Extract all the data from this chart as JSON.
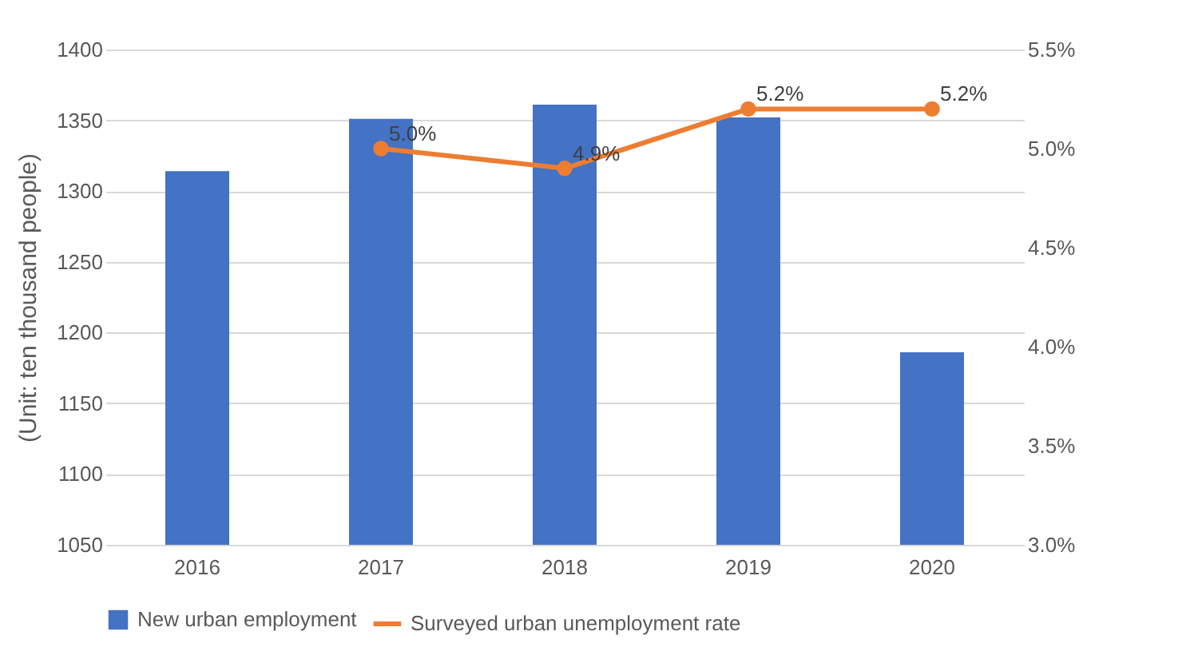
{
  "chart_data": {
    "type": "bar",
    "categories": [
      "2016",
      "2017",
      "2018",
      "2019",
      "2020"
    ],
    "ylabel": "(Unit: ten thousand people)",
    "ylim": [
      1050,
      1400
    ],
    "yticks": [
      1050,
      1100,
      1150,
      1200,
      1250,
      1300,
      1350,
      1400
    ],
    "y2lim": [
      3.0,
      5.5
    ],
    "y2ticks": [
      {
        "value": 3.0,
        "label": "3.0%"
      },
      {
        "value": 3.5,
        "label": "3.5%"
      },
      {
        "value": 4.0,
        "label": "4.0%"
      },
      {
        "value": 4.5,
        "label": "4.5%"
      },
      {
        "value": 5.0,
        "label": "5.0%"
      },
      {
        "value": 5.5,
        "label": "5.5%"
      }
    ],
    "grid": "y",
    "legend": "bottom",
    "marker": "circle",
    "series": [
      {
        "name": "New urban employment",
        "color": "#4472c4",
        "values": [
          1314,
          1351,
          1361,
          1352,
          1186
        ]
      },
      {
        "name": "Surveyed urban unemployment rate",
        "type": "line",
        "axis": "y2",
        "color": "#ed7d31",
        "values": [
          null,
          5.0,
          4.9,
          5.2,
          5.2
        ],
        "value_labels": [
          null,
          "5.0%",
          "4.9%",
          "5.2%",
          "5.2%"
        ]
      }
    ]
  }
}
